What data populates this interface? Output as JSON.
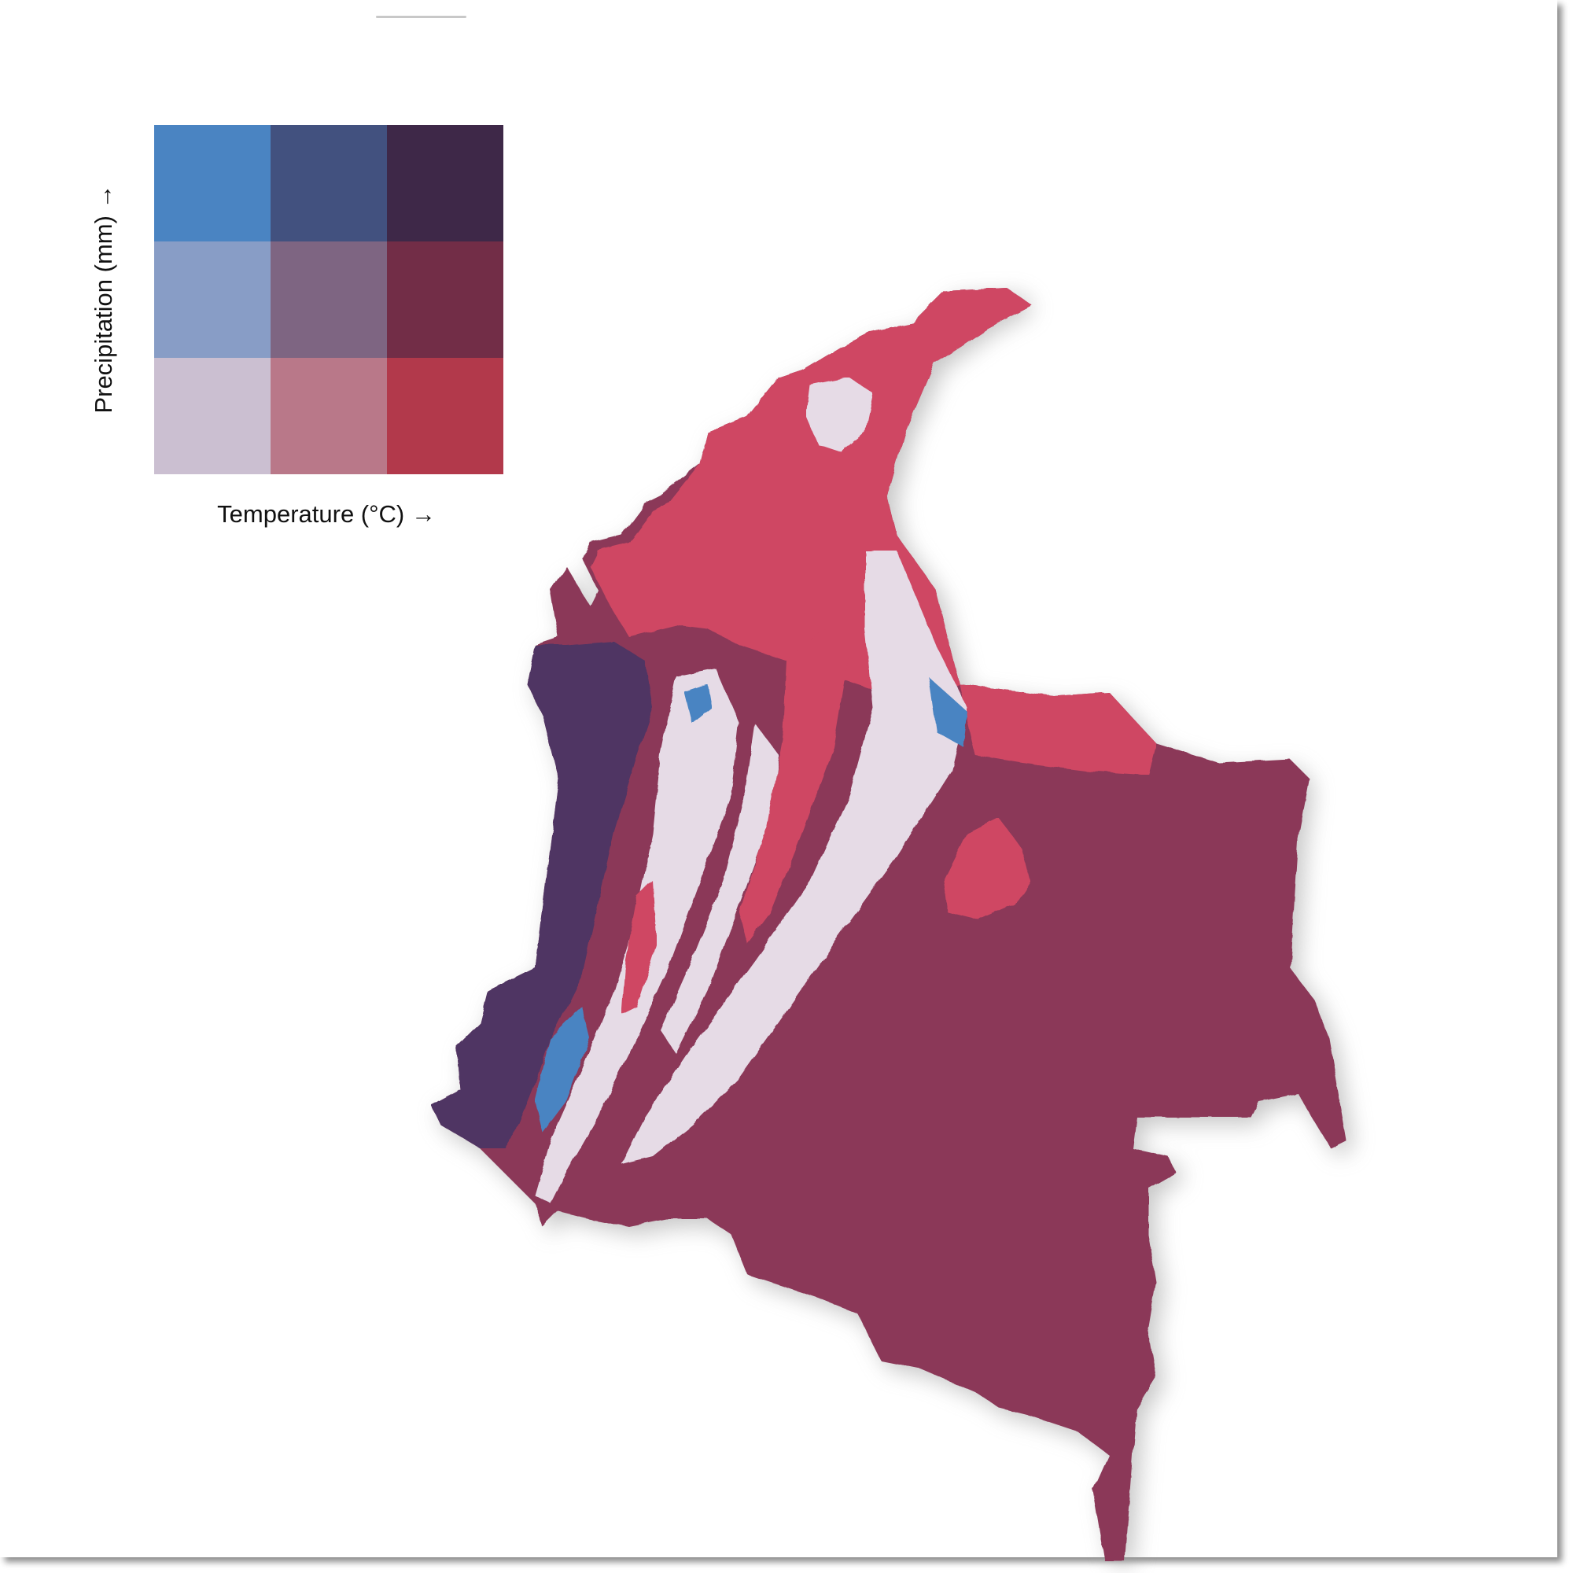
{
  "legend": {
    "y_axis_label": "Precipitation (mm) →",
    "x_axis_label": "Temperature (°C) →",
    "palette": [
      [
        "#4a84c2",
        "#42517f",
        "#3e2848"
      ],
      [
        "#889dc6",
        "#7e6582",
        "#722d47"
      ],
      [
        "#cbbfd1",
        "#b97889",
        "#b2394b"
      ]
    ]
  },
  "map": {
    "colors": {
      "hot_dry": "#cf4763",
      "hot_medium": "#8b3858",
      "hot_wet": "#4f3463",
      "cold_wet": "#4a84c2",
      "cold_dry": "#e6dbe6",
      "shadow": "#9a9a9a"
    }
  }
}
